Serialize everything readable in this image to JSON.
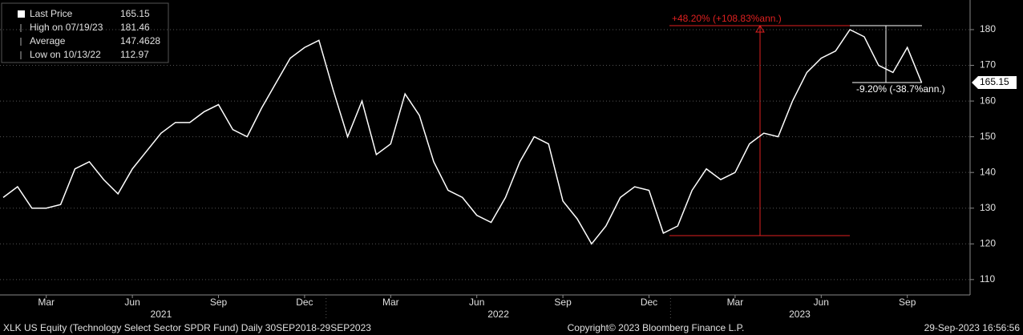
{
  "chart_data": {
    "type": "line",
    "series": [
      {
        "name": "Last Price",
        "color": "#ffffff",
        "values": [
          133,
          136,
          130,
          130,
          131,
          141,
          143,
          138,
          134,
          141,
          146,
          151,
          154,
          154,
          157,
          159,
          152,
          150,
          158,
          165,
          172,
          175,
          177,
          163,
          150,
          160,
          145,
          148,
          162,
          156,
          143,
          135,
          133,
          128,
          126,
          133,
          143,
          150,
          148,
          132,
          127,
          120,
          125,
          133,
          136,
          135,
          123,
          125,
          135,
          141,
          138,
          140,
          148,
          151,
          150,
          160,
          168,
          172,
          174,
          180,
          178,
          170,
          168,
          175,
          165.15
        ]
      }
    ],
    "categories": [
      null,
      null,
      null,
      "Mar",
      null,
      null,
      null,
      null,
      null,
      "Jun",
      null,
      null,
      null,
      null,
      null,
      "Sep",
      null,
      null,
      null,
      null,
      null,
      "Dec",
      null,
      null,
      null,
      null,
      null,
      "Mar",
      null,
      null,
      null,
      null,
      null,
      "Jun",
      null,
      null,
      null,
      null,
      null,
      "Sep",
      null,
      null,
      null,
      null,
      null,
      "Dec",
      null,
      null,
      null,
      null,
      null,
      "Mar",
      null,
      null,
      null,
      null,
      null,
      "Jun",
      null,
      null,
      null,
      null,
      null,
      "Sep",
      null
    ],
    "x_groups": [
      {
        "label": "2021",
        "count": 23
      },
      {
        "label": "2022",
        "count": 24
      },
      {
        "label": "2023",
        "count": 18
      }
    ],
    "ylim": [
      105.7,
      188.3
    ],
    "yticks": [
      110,
      120,
      130,
      140,
      150,
      160,
      170,
      180
    ],
    "grid": true,
    "stats": [
      {
        "label": "High on 07/19/23",
        "value": 181.46
      },
      {
        "label": "Average",
        "value": 147.4628
      },
      {
        "label": "Low on 10/13/22",
        "value": 112.97
      }
    ],
    "annotations": [
      "+48.20% (+108.83%ann.)",
      "-9.20% (-38.7%ann.)"
    ],
    "footer": {
      "left": "XLK US Equity (Technology Select Sector SPDR Fund)  Daily 30SEP2018-29SEP2023",
      "center": "Copyright© 2023 Bloomberg Finance L.P.",
      "right": "29-Sep-2023 16:56:56"
    }
  }
}
